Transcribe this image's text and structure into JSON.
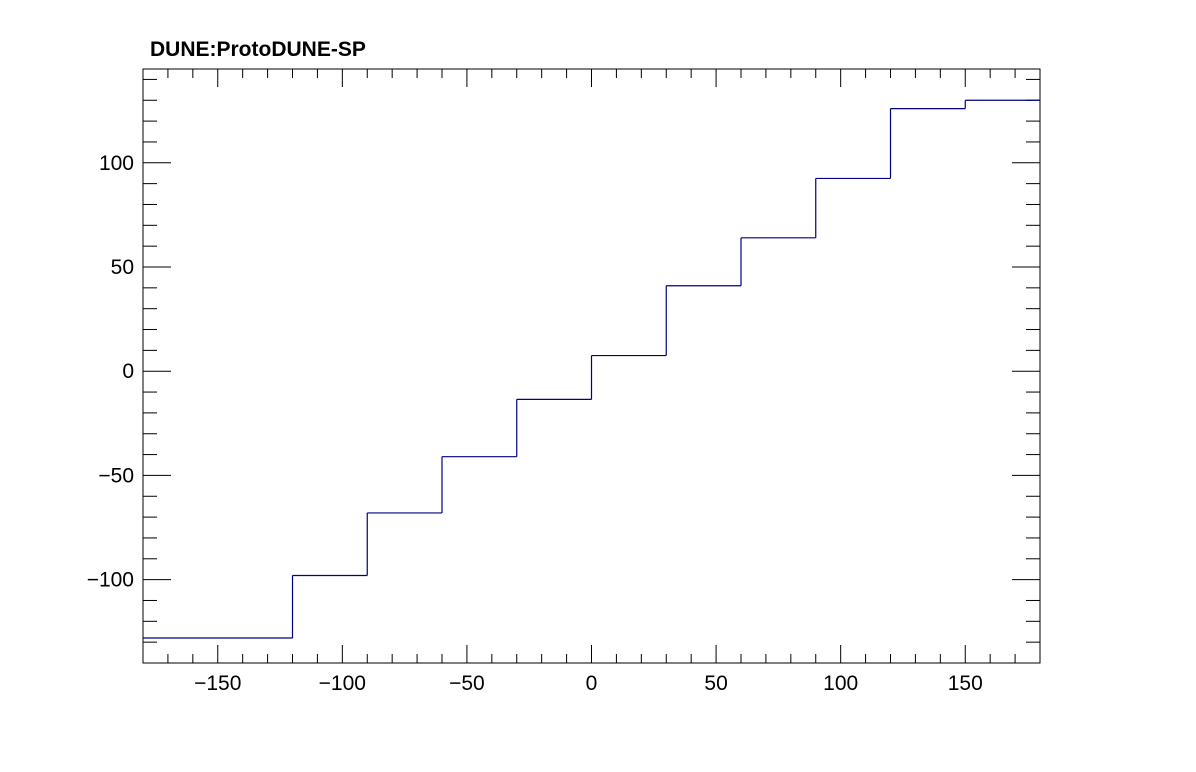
{
  "chart_data": {
    "type": "line",
    "title": "DUNE:ProtoDUNE-SP",
    "xlabel": "",
    "ylabel": "",
    "xlim": [
      -180,
      180
    ],
    "ylim": [
      -140,
      145
    ],
    "x_ticks": [
      -150,
      -100,
      -50,
      0,
      50,
      100,
      150
    ],
    "x_tick_labels": [
      "−150",
      "−100",
      "−50",
      "0",
      "50",
      "100",
      "150"
    ],
    "y_ticks": [
      -100,
      -50,
      0,
      50,
      100
    ],
    "y_tick_labels": [
      "−100",
      "−50",
      "0",
      "50",
      "100"
    ],
    "grid": false,
    "legend": false,
    "series": [
      {
        "style": "step",
        "color": "#000080",
        "bins": [
          {
            "x_low": -180,
            "x_high": -120,
            "y": -128
          },
          {
            "x_low": -120,
            "x_high": -90,
            "y": -98
          },
          {
            "x_low": -90,
            "x_high": -60,
            "y": -68
          },
          {
            "x_low": -60,
            "x_high": -30,
            "y": -41
          },
          {
            "x_low": -30,
            "x_high": 0,
            "y": -13.5
          },
          {
            "x_low": 0,
            "x_high": 30,
            "y": 7.5
          },
          {
            "x_low": 30,
            "x_high": 60,
            "y": 41
          },
          {
            "x_low": 60,
            "x_high": 90,
            "y": 64
          },
          {
            "x_low": 90,
            "x_high": 120,
            "y": 92.5
          },
          {
            "x_low": 120,
            "x_high": 150,
            "y": 126
          },
          {
            "x_low": 150,
            "x_high": 180,
            "y": 130
          }
        ]
      }
    ]
  }
}
